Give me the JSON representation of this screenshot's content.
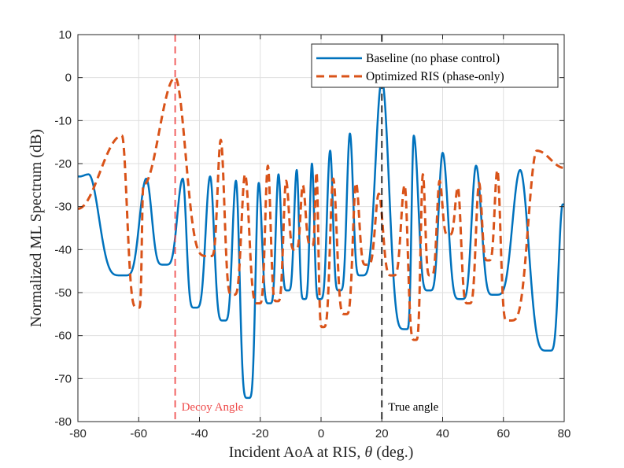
{
  "chart_data": {
    "type": "line",
    "title": "",
    "xlabel_prefix": "Incident AoA at RIS, ",
    "xlabel_symbol": "θ",
    "xlabel_suffix": " (deg.)",
    "ylabel": "Normalized ML Spectrum (dB)",
    "xlim": [
      -80,
      80
    ],
    "ylim": [
      -80,
      10
    ],
    "xticks": [
      -80,
      -60,
      -40,
      -20,
      0,
      20,
      40,
      60,
      80
    ],
    "yticks": [
      10,
      0,
      -10,
      -20,
      -30,
      -40,
      -50,
      -60,
      -70,
      -80
    ],
    "grid": true,
    "legend_position": "top-right",
    "series": [
      {
        "name": "Baseline (no phase control)",
        "style": "solid",
        "color": "#0072BD",
        "nulls": [
          -65,
          -51.5,
          -41.5,
          -32,
          -24,
          -17,
          -11,
          -5.5,
          -0.5,
          6,
          13,
          28,
          35.5,
          46,
          57,
          75
        ],
        "null_depths": [
          -46,
          -43.5,
          -53.5,
          -56.5,
          -74.5,
          -52.5,
          -49.5,
          -51.5,
          -51.5,
          -49.5,
          -46,
          -58.5,
          -49.5,
          -51.5,
          -50.5,
          -63.5
        ],
        "peaks": [
          -79.5,
          -76.5,
          -57.5,
          -45.5,
          -36.5,
          -28,
          -20.5,
          -14,
          -8,
          -3,
          3,
          9.5,
          20,
          30.5,
          40,
          51,
          65.5,
          79.5
        ],
        "peak_levels": [
          -23,
          -22.5,
          -23.5,
          -23.5,
          -23,
          -24,
          -24.5,
          -22.5,
          -21.5,
          -20,
          -17,
          -13,
          -0.5,
          -13.5,
          -17.5,
          -20.5,
          -21.5,
          -29.5
        ]
      },
      {
        "name": "Optimized RIS (phase-only)",
        "style": "dashed",
        "color": "#D95319",
        "nulls": [
          -60,
          -36.5,
          -29,
          -20.5,
          -14.5,
          -8.5,
          -3,
          0.5,
          8,
          15,
          23.5,
          31,
          36,
          42,
          48.5,
          55,
          61.5
        ],
        "null_depths": [
          -53.5,
          -41.5,
          -50.5,
          -52.5,
          -52,
          -40,
          -39,
          -58,
          -55,
          -43.5,
          -46,
          -61,
          -46,
          -36.5,
          -52.5,
          -42.5,
          -56.5
        ],
        "peaks": [
          -80,
          -65.5,
          -58.5,
          -48,
          -33,
          -25,
          -17.5,
          -11.5,
          -6,
          -1.5,
          4,
          11.5,
          19,
          27.5,
          33.5,
          39,
          45,
          52,
          58,
          71,
          80
        ],
        "peak_levels": [
          -30.5,
          -13.5,
          -25,
          0,
          -14.5,
          -22.5,
          -20.5,
          -24,
          -25,
          -22,
          -23.5,
          -24.5,
          -27,
          -25,
          -22.5,
          -24,
          -25.5,
          -24.5,
          -21.5,
          -17,
          -21
        ]
      }
    ],
    "annotations": [
      {
        "x": -48,
        "label": "Decoy Angle",
        "color": "#EE4848"
      },
      {
        "x": 20,
        "label": "True angle",
        "color": "#000000"
      }
    ]
  }
}
